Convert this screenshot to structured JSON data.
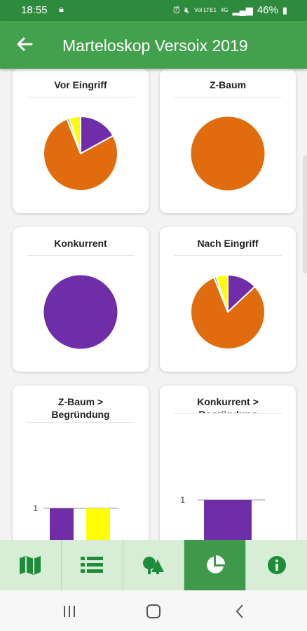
{
  "status_bar": {
    "time": "18:55",
    "network": "Vol LTE1",
    "signal_label": "4G",
    "battery": "46%"
  },
  "app_bar": {
    "title": "Marteloskop Versoix 2019",
    "back_icon": "arrow-left-icon"
  },
  "colors": {
    "app_bar": "#43a04d",
    "status_bar": "#2e8b3e",
    "purple": "#6f2da8",
    "orange": "#e06c0d",
    "yellow": "#ffff00",
    "green": "#4caf50",
    "nav_background": "#d7edd6",
    "nav_active": "#3e9a4a"
  },
  "charts": {
    "vor_eingriff": {
      "title": "Vor Eingriff",
      "chart_data": {
        "type": "pie",
        "title": "Vor Eingriff",
        "slices": [
          {
            "value": 17,
            "color": "#6f2da8"
          },
          {
            "value": 77,
            "color": "#e06c0d"
          },
          {
            "value": 1,
            "color": "#4caf50"
          },
          {
            "value": 5,
            "color": "#ffff00"
          }
        ]
      }
    },
    "z_baum": {
      "title": "Z-Baum",
      "chart_data": {
        "type": "pie",
        "title": "Z-Baum",
        "slices": [
          {
            "value": 100,
            "color": "#e06c0d"
          }
        ]
      }
    },
    "konkurrent": {
      "title": "Konkurrent",
      "chart_data": {
        "type": "pie",
        "title": "Konkurrent",
        "slices": [
          {
            "value": 100,
            "color": "#6f2da8"
          }
        ]
      }
    },
    "nach_eingriff": {
      "title": "Nach Eingriff",
      "chart_data": {
        "type": "pie",
        "title": "Nach Eingriff",
        "slices": [
          {
            "value": 13,
            "color": "#6f2da8"
          },
          {
            "value": 81,
            "color": "#e06c0d"
          },
          {
            "value": 1,
            "color": "#4caf50"
          },
          {
            "value": 5,
            "color": "#ffff00"
          }
        ]
      }
    },
    "z_baum_begruendung": {
      "title_line1": "Z-Baum >",
      "title_line2": "Begründung",
      "chart_data": {
        "type": "bar",
        "title": "Z-Baum > Begründung",
        "values": [
          1,
          1
        ],
        "colors": [
          "#6f2da8",
          "#ffff00"
        ],
        "ylim": [
          0,
          1
        ],
        "yticks": [
          "0",
          "1"
        ]
      }
    },
    "konkurrent_begruendung": {
      "title_line1": "Konkurrent >",
      "title_line2": "Begründung",
      "chart_data": {
        "type": "bar",
        "title": "Konkurrent > Begründung",
        "values": [
          1
        ],
        "colors": [
          "#6f2da8"
        ],
        "ylim": [
          0,
          1
        ],
        "yticks": [
          "0",
          "1"
        ]
      }
    }
  },
  "bottom_nav": {
    "items": [
      {
        "name": "map",
        "icon": "map-icon",
        "active": false
      },
      {
        "name": "list",
        "icon": "list-icon",
        "active": false
      },
      {
        "name": "trees",
        "icon": "trees-icon",
        "active": false
      },
      {
        "name": "statistics",
        "icon": "pie-chart-icon",
        "active": true
      },
      {
        "name": "info",
        "icon": "info-icon",
        "active": false
      }
    ]
  },
  "system_nav": {
    "recent_icon": "recent-apps-icon",
    "home_icon": "home-icon",
    "back_icon": "back-icon"
  }
}
